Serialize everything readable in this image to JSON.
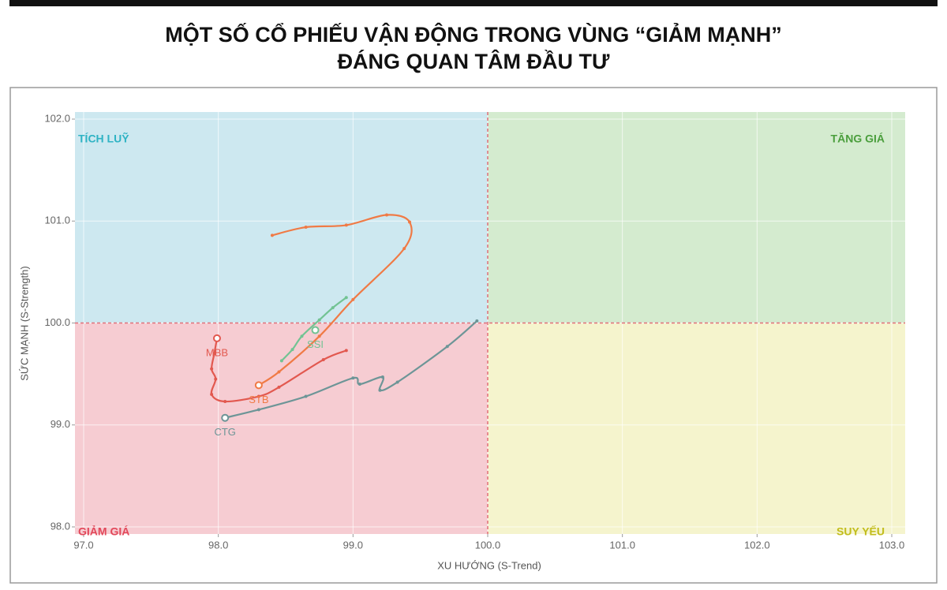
{
  "chart_data": {
    "type": "rrg",
    "title": [
      "MỘT SỐ CỔ PHIẾU VẬN ĐỘNG TRONG VÙNG “GIẢM MẠNH”",
      "ĐÁNG QUAN TÂM ĐẦU TƯ"
    ],
    "x_label": "XU HƯỚNG (S-Trend)",
    "y_label": "SỨC MẠNH (S-Strength)",
    "xlim": [
      97,
      103
    ],
    "ylim": [
      98,
      102
    ],
    "xticks": [
      {
        "value": 97,
        "label": "97.0"
      },
      {
        "value": 98,
        "label": "98.0"
      },
      {
        "value": 99,
        "label": "99.0"
      },
      {
        "value": 100,
        "label": "100.0"
      },
      {
        "value": 101,
        "label": "101.0"
      },
      {
        "value": 102,
        "label": "102.0"
      },
      {
        "value": 103,
        "label": "103.0"
      }
    ],
    "yticks": [
      {
        "value": 98,
        "label": "98.0"
      },
      {
        "value": 99,
        "label": "99.0"
      },
      {
        "value": 100,
        "label": "100.0"
      },
      {
        "value": 101,
        "label": "101.0"
      },
      {
        "value": 102,
        "label": "102.0"
      }
    ],
    "grid": true,
    "x_center": 100,
    "y_center": 100,
    "quadrants": [
      {
        "label": "TÍCH LUỸ",
        "corner": "top-left",
        "color": "#2fb3c4",
        "fill": "#cde8f0"
      },
      {
        "label": "TĂNG GIÁ",
        "corner": "top-right",
        "color": "#4a9e3c",
        "fill": "#d4ebcf"
      },
      {
        "label": "GIẢM GIÁ",
        "corner": "bottom-left",
        "color": "#e2485a",
        "fill": "#f6ccd2"
      },
      {
        "label": "SUY YẾU",
        "corner": "bottom-right",
        "color": "#c2bd1c",
        "fill": "#f5f4cd"
      }
    ],
    "series": [
      {
        "name": "CTG",
        "color": "#6d9597",
        "marker": [
          98.05,
          99.07
        ],
        "x": [
          98.05,
          98.3,
          98.65,
          99.0,
          99.05,
          99.22,
          99.2,
          99.33,
          99.7,
          99.92
        ],
        "y": [
          99.07,
          99.15,
          99.28,
          99.46,
          99.4,
          99.47,
          99.34,
          99.42,
          99.77,
          100.02
        ]
      },
      {
        "name": "MBB",
        "color": "#e2584f",
        "marker": [
          97.99,
          99.85
        ],
        "x": [
          97.99,
          97.97,
          97.95,
          97.98,
          97.95,
          98.05,
          98.3,
          98.45,
          98.78,
          98.95
        ],
        "y": [
          99.85,
          99.7,
          99.55,
          99.45,
          99.3,
          99.23,
          99.28,
          99.37,
          99.64,
          99.73
        ]
      },
      {
        "name": "STB",
        "color": "#f07a45",
        "marker": [
          98.3,
          99.39
        ],
        "x": [
          98.3,
          98.45,
          98.75,
          99.0,
          99.38,
          99.42,
          99.25,
          98.95,
          98.65,
          98.4
        ],
        "y": [
          99.39,
          99.52,
          99.87,
          100.23,
          100.73,
          100.99,
          101.06,
          100.96,
          100.94,
          100.86
        ]
      },
      {
        "name": "SSI",
        "color": "#72c393",
        "marker": [
          98.72,
          99.93
        ],
        "x": [
          98.47,
          98.55,
          98.62,
          98.75,
          98.85,
          98.95
        ],
        "y": [
          99.63,
          99.74,
          99.87,
          100.03,
          100.15,
          100.25
        ]
      }
    ]
  }
}
